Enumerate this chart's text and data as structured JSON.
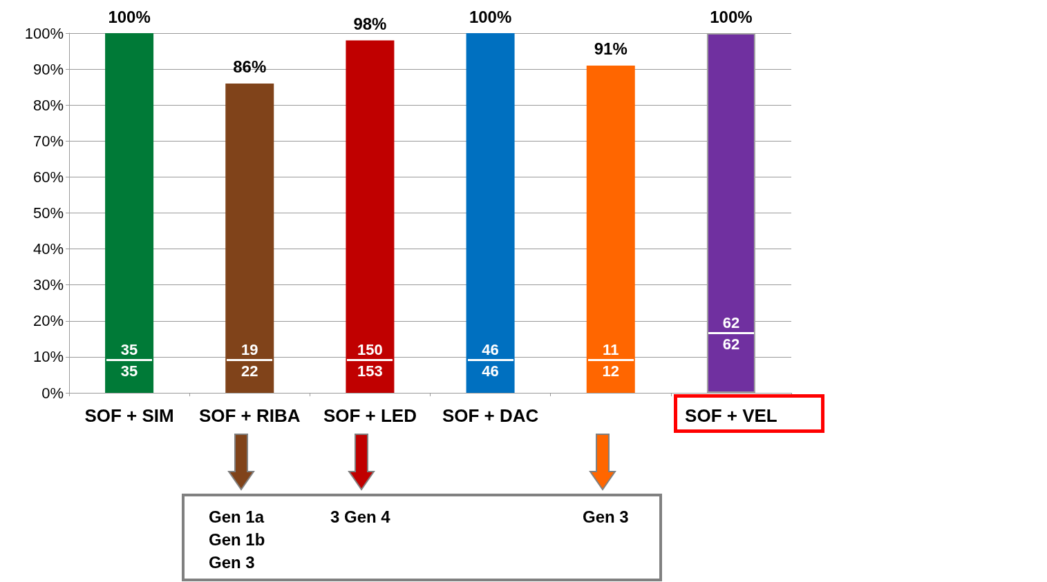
{
  "chart_data": {
    "type": "bar",
    "categories": [
      "SOF + SIM",
      "SOF + RIBA",
      "SOF + LED",
      "SOF + DAC",
      null,
      "SOF + VEL"
    ],
    "values": [
      100,
      86,
      98,
      100,
      91,
      100
    ],
    "colors": [
      "#007a37",
      "#80431a",
      "#c00000",
      "#0070c0",
      "#ff6600",
      "#7030a0"
    ],
    "value_labels": [
      "100%",
      "86%",
      "98%",
      "100%",
      "91%",
      "100%"
    ],
    "ylim": [
      0,
      100
    ],
    "yticks": [
      {
        "value": 0,
        "label": "0%"
      },
      {
        "value": 10,
        "label": "10%"
      },
      {
        "value": 20,
        "label": "20%"
      },
      {
        "value": 30,
        "label": "30%"
      },
      {
        "value": 40,
        "label": "40%"
      },
      {
        "value": 50,
        "label": "50%"
      },
      {
        "value": 60,
        "label": "60%"
      },
      {
        "value": 70,
        "label": "70%"
      },
      {
        "value": 80,
        "label": "80%"
      },
      {
        "value": 90,
        "label": "90%"
      },
      {
        "value": 100,
        "label": "100%"
      }
    ],
    "grid": "y",
    "annotations": [
      "35",
      "35",
      "19",
      "22",
      "150",
      "153",
      "46",
      "46",
      "11",
      "12",
      "62",
      "62",
      "Gen 1a\nGen 1b\nGen 3",
      "3 Gen 4",
      "Gen 3"
    ]
  }
}
